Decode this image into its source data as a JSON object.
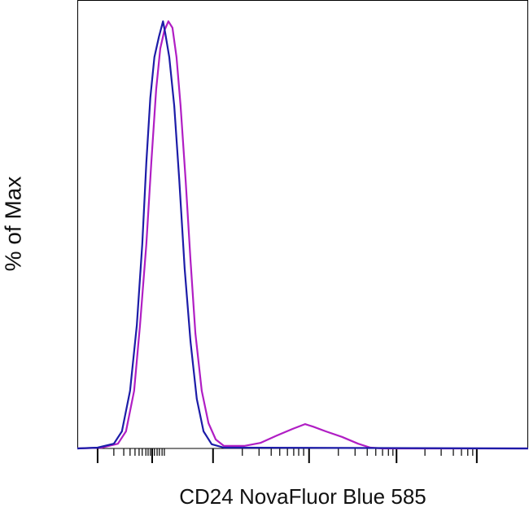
{
  "chart_data": {
    "type": "line",
    "xlabel": "CD24 NovaFluor Blue 585",
    "ylabel": "% of Max",
    "xlim": [
      0,
      100
    ],
    "ylim": [
      0,
      105
    ],
    "xticks": [
      4.5,
      16.6,
      30.1,
      51.4,
      70.8,
      88.6
    ],
    "xminorticks": [
      8.1,
      10.3,
      11.7,
      12.8,
      13.7,
      14.4,
      15.2,
      15.7,
      16.2,
      17.1,
      17.7,
      18.2,
      18.8,
      19.3,
      36.6,
      40.3,
      43.0,
      44.9,
      46.6,
      48.0,
      49.1,
      50.2,
      57.9,
      61.6,
      64.3,
      66.2,
      67.7,
      69.0,
      70.0,
      77.1,
      80.7,
      83.4,
      85.2,
      86.6,
      87.7
    ],
    "series": [
      {
        "color": "#b01ec4",
        "x": [
          0,
          5.4,
          9.0,
          10.8,
          12.6,
          13.9,
          15.3,
          16.4,
          17.5,
          18.4,
          19.3,
          20.2,
          21.1,
          22.0,
          22.9,
          24.0,
          25.1,
          26.2,
          27.6,
          29.1,
          30.7,
          32.5,
          37.0,
          40.6,
          44.2,
          47.8,
          50.5,
          52.3,
          55.1,
          58.7,
          62.3,
          65.0,
          67.7,
          100
        ],
        "values": [
          0,
          0.2,
          1.1,
          4.0,
          13.5,
          28.8,
          47.8,
          66.9,
          84.1,
          93.6,
          97.8,
          100,
          98.5,
          91.6,
          80.2,
          63.1,
          44.0,
          26.9,
          13.5,
          5.9,
          2.1,
          0.6,
          0.6,
          1.3,
          3.0,
          4.6,
          5.7,
          5.1,
          4.0,
          2.7,
          1.1,
          0.2,
          0,
          0
        ]
      },
      {
        "color": "#1c1ca8",
        "x": [
          0,
          4.5,
          8.1,
          9.9,
          11.7,
          13.2,
          14.4,
          15.3,
          16.2,
          17.1,
          18.1,
          19.0,
          19.5,
          20.4,
          21.5,
          22.6,
          23.8,
          25.1,
          26.5,
          28.0,
          29.8,
          32.5,
          100
        ],
        "values": [
          0,
          0.2,
          1.1,
          4.0,
          13.5,
          28.8,
          47.8,
          66.9,
          82.1,
          91.6,
          96.4,
          100,
          97.3,
          91.6,
          80.2,
          63.1,
          42.1,
          25.0,
          11.6,
          4.0,
          1.0,
          0.2,
          0
        ]
      }
    ]
  }
}
